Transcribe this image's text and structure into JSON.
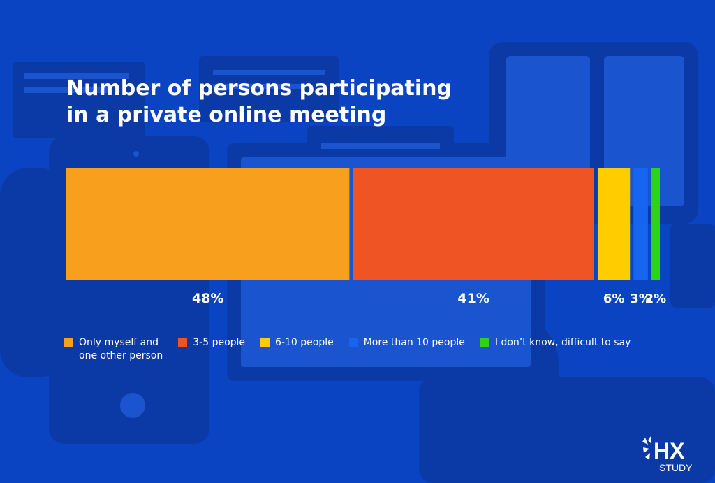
{
  "title_lines": [
    "Number of persons participating",
    "in a private online meeting"
  ],
  "colors": {
    "background": "#0a44c2",
    "background_shapes": "#0b3aa6",
    "background_shapes_light": "#1a55cf"
  },
  "chart_data": {
    "type": "bar",
    "orientation": "horizontal-stacked",
    "title": "Number of persons participating in a private online meeting",
    "unit": "%",
    "categories": [
      "Only myself and one other person",
      "3-5 people",
      "6-10 people",
      "More than 10 people",
      "I don’t know, difficult to say"
    ],
    "values": [
      48,
      41,
      6,
      3,
      2
    ],
    "value_labels": [
      "48%",
      "41%",
      "6%",
      "3%",
      "2%"
    ],
    "colors": [
      "#f99f1e",
      "#ef5424",
      "#ffcc00",
      "#1565f0",
      "#2fd21a"
    ],
    "legend_position": "bottom",
    "grid": false
  },
  "legend": [
    {
      "label": "Only myself and\none other person",
      "color": "#f99f1e"
    },
    {
      "label": "3-5 people",
      "color": "#ef5424"
    },
    {
      "label": "6-10 people",
      "color": "#ffcc00"
    },
    {
      "label": "More than 10 people",
      "color": "#1565f0"
    },
    {
      "label": "I don’t know, difficult to say",
      "color": "#2fd21a"
    }
  ],
  "logo": {
    "brand": "HX",
    "sub": "STUDY"
  }
}
